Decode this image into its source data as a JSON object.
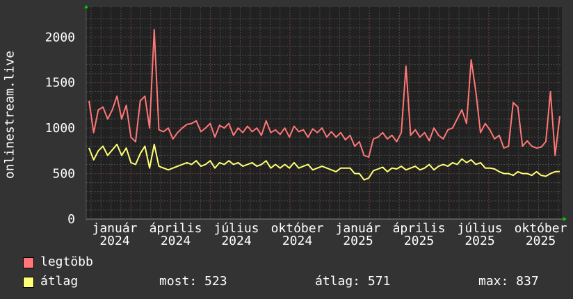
{
  "chart_data": {
    "type": "line",
    "ylabel": "onlinestream.live",
    "ylim": [
      0,
      2300
    ],
    "yticks": [
      "0",
      "500",
      "1000",
      "1500",
      "2000"
    ],
    "xtick_labels": [
      "január 2024",
      "április 2024",
      "július 2024",
      "október 2024",
      "január 2025",
      "április 2025",
      "július 2025",
      "október 2025"
    ],
    "grid": true,
    "x": [
      "2023-12-28",
      "2024-01-04",
      "2024-01-11",
      "2024-01-18",
      "2024-01-25",
      "2024-02-01",
      "2024-02-08",
      "2024-02-15",
      "2024-02-22",
      "2024-02-29",
      "2024-03-07",
      "2024-03-14",
      "2024-03-21",
      "2024-03-28",
      "2024-04-04",
      "2024-04-11",
      "2024-04-18",
      "2024-04-25",
      "2024-05-02",
      "2024-05-09",
      "2024-05-16",
      "2024-05-23",
      "2024-05-30",
      "2024-06-06",
      "2024-06-13",
      "2024-06-20",
      "2024-06-27",
      "2024-07-04",
      "2024-07-11",
      "2024-07-18",
      "2024-07-25",
      "2024-08-01",
      "2024-08-08",
      "2024-08-15",
      "2024-08-22",
      "2024-08-29",
      "2024-09-05",
      "2024-09-12",
      "2024-09-19",
      "2024-09-26",
      "2024-10-03",
      "2024-10-10",
      "2024-10-17",
      "2024-10-24",
      "2024-10-31",
      "2024-11-07",
      "2024-11-14",
      "2024-11-21",
      "2024-11-28",
      "2024-12-05",
      "2024-12-12",
      "2024-12-19",
      "2024-12-26",
      "2025-01-02",
      "2025-01-09",
      "2025-01-16",
      "2025-01-23",
      "2025-01-30",
      "2025-02-06",
      "2025-02-13",
      "2025-02-20",
      "2025-02-27",
      "2025-03-06",
      "2025-03-13",
      "2025-03-20",
      "2025-03-27",
      "2025-04-03",
      "2025-04-10",
      "2025-04-17",
      "2025-04-24",
      "2025-05-01",
      "2025-05-08",
      "2025-05-15",
      "2025-05-22",
      "2025-05-29",
      "2025-06-05",
      "2025-06-12",
      "2025-06-19",
      "2025-06-26",
      "2025-07-03",
      "2025-07-10",
      "2025-07-17",
      "2025-07-24",
      "2025-07-31",
      "2025-08-07",
      "2025-08-14",
      "2025-08-21",
      "2025-08-28",
      "2025-09-04",
      "2025-09-11",
      "2025-09-18",
      "2025-09-25",
      "2025-10-02",
      "2025-10-09",
      "2025-10-16",
      "2025-10-23",
      "2025-10-30",
      "2025-11-06",
      "2025-11-13",
      "2025-11-20",
      "2025-11-27",
      "2025-12-04"
    ],
    "series": [
      {
        "name": "legtöbb",
        "color": "#ff7777",
        "values": [
          1300,
          950,
          1200,
          1230,
          1100,
          1200,
          1350,
          1100,
          1250,
          900,
          850,
          1300,
          1350,
          1000,
          2080,
          980,
          960,
          1000,
          880,
          950,
          1000,
          1040,
          1050,
          1080,
          960,
          1000,
          1050,
          900,
          1030,
          1000,
          1050,
          920,
          1000,
          950,
          1020,
          960,
          1000,
          920,
          1080,
          950,
          980,
          930,
          1000,
          900,
          1020,
          960,
          980,
          900,
          990,
          950,
          1000,
          900,
          960,
          900,
          950,
          870,
          920,
          800,
          850,
          700,
          680,
          880,
          900,
          950,
          880,
          920,
          850,
          950,
          1680,
          920,
          980,
          900,
          950,
          860,
          1000,
          920,
          880,
          980,
          1000,
          1100,
          1200,
          1050,
          1750,
          1400,
          950,
          1050,
          980,
          880,
          920,
          780,
          800,
          1280,
          1230,
          800,
          860,
          800,
          780,
          790,
          850,
          1400,
          700,
          1130
        ]
      },
      {
        "name": "átlag",
        "color": "#ffff77",
        "values": [
          780,
          650,
          750,
          800,
          700,
          760,
          820,
          700,
          780,
          620,
          600,
          720,
          800,
          560,
          820,
          580,
          560,
          540,
          560,
          580,
          600,
          620,
          600,
          640,
          580,
          600,
          640,
          560,
          620,
          600,
          640,
          600,
          620,
          580,
          600,
          620,
          580,
          600,
          640,
          560,
          600,
          560,
          600,
          560,
          620,
          560,
          580,
          600,
          540,
          560,
          580,
          560,
          540,
          520,
          560,
          560,
          560,
          500,
          500,
          430,
          450,
          530,
          550,
          570,
          520,
          560,
          550,
          580,
          540,
          560,
          580,
          540,
          560,
          600,
          540,
          580,
          600,
          580,
          620,
          600,
          660,
          620,
          650,
          600,
          620,
          560,
          560,
          550,
          520,
          500,
          500,
          480,
          520,
          500,
          500,
          480,
          520,
          480,
          470,
          500,
          520,
          523
        ]
      }
    ]
  },
  "legend": {
    "max_label": "legtöbb",
    "avg_label": "átlag",
    "now": "most: 523",
    "average": "átlag: 571",
    "maximum": "max: 837"
  },
  "colors": {
    "background": "#333333",
    "plot_background": "#212121",
    "axis_arrow": "#00cc00"
  }
}
